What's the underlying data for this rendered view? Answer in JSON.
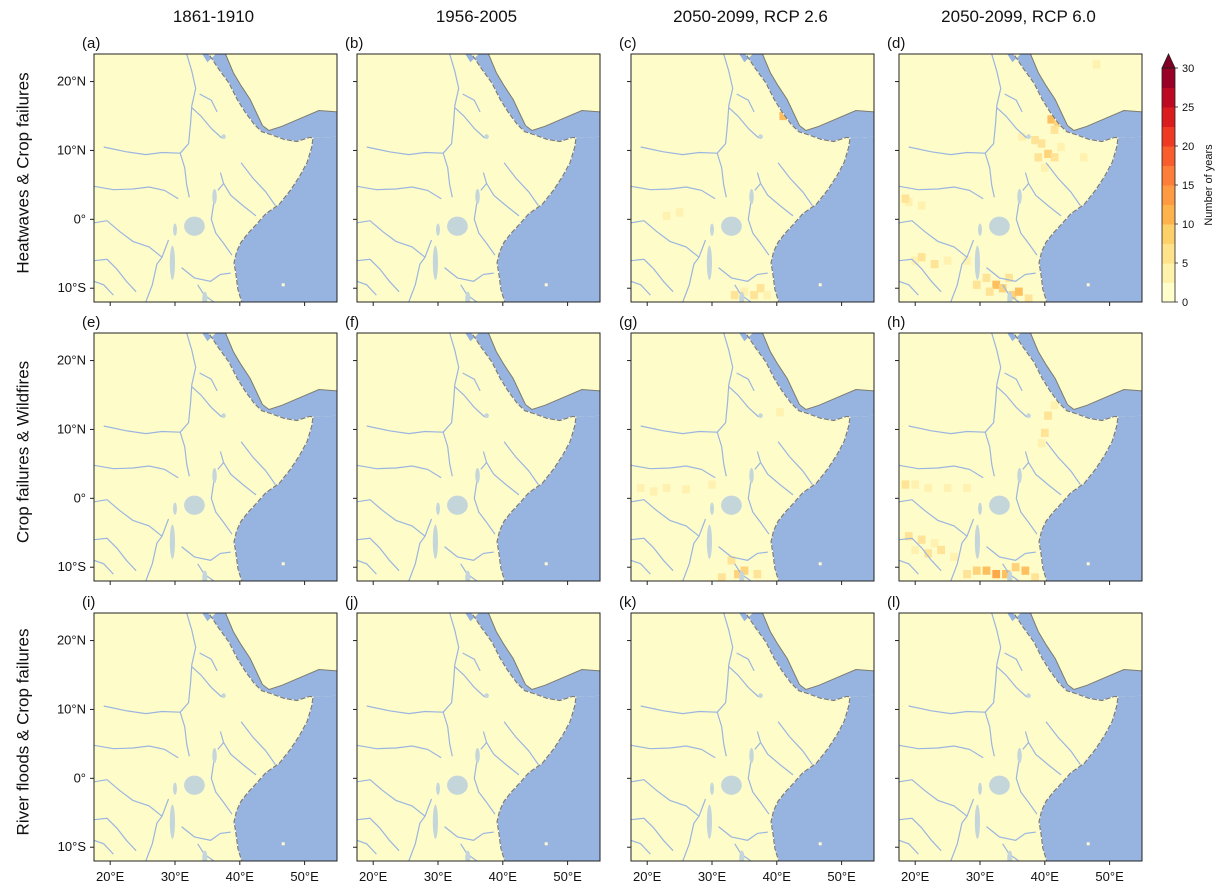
{
  "columns": [
    {
      "title": "1861-1910"
    },
    {
      "title": "1956-2005"
    },
    {
      "title": "2050-2099, RCP 2.6"
    },
    {
      "title": "2050-2099, RCP 6.0"
    }
  ],
  "rows": [
    {
      "label": "Heatwaves & Crop failures",
      "panels": [
        "(a)",
        "(b)",
        "(c)",
        "(d)"
      ]
    },
    {
      "label": "Crop failures & Wildfires",
      "panels": [
        "(e)",
        "(f)",
        "(g)",
        "(h)"
      ]
    },
    {
      "label": "River floods & Crop failures",
      "panels": [
        "(i)",
        "(j)",
        "(k)",
        "(l)"
      ]
    }
  ],
  "lat_ticks": [
    "20°N",
    "10°N",
    "0°",
    "10°S"
  ],
  "lon_ticks": [
    "20°E",
    "30°E",
    "40°E",
    "50°E"
  ],
  "colorbar": {
    "label": "Number of years",
    "ticks": [
      "0",
      "5",
      "10",
      "15",
      "20",
      "25",
      "30"
    ],
    "colors": [
      "#ffffcc",
      "#fff2aa",
      "#ffe28a",
      "#fed06a",
      "#feb24c",
      "#fd9a42",
      "#fd7e38",
      "#f95d2d",
      "#ee3a23",
      "#db1c1e",
      "#bd0a22",
      "#980026"
    ],
    "extend_color": "#800026"
  },
  "colors": {
    "land": "#fefdca",
    "ocean": "#97b4e1",
    "rivers": "#9bb5df",
    "lakes": "#c5d6db"
  }
}
